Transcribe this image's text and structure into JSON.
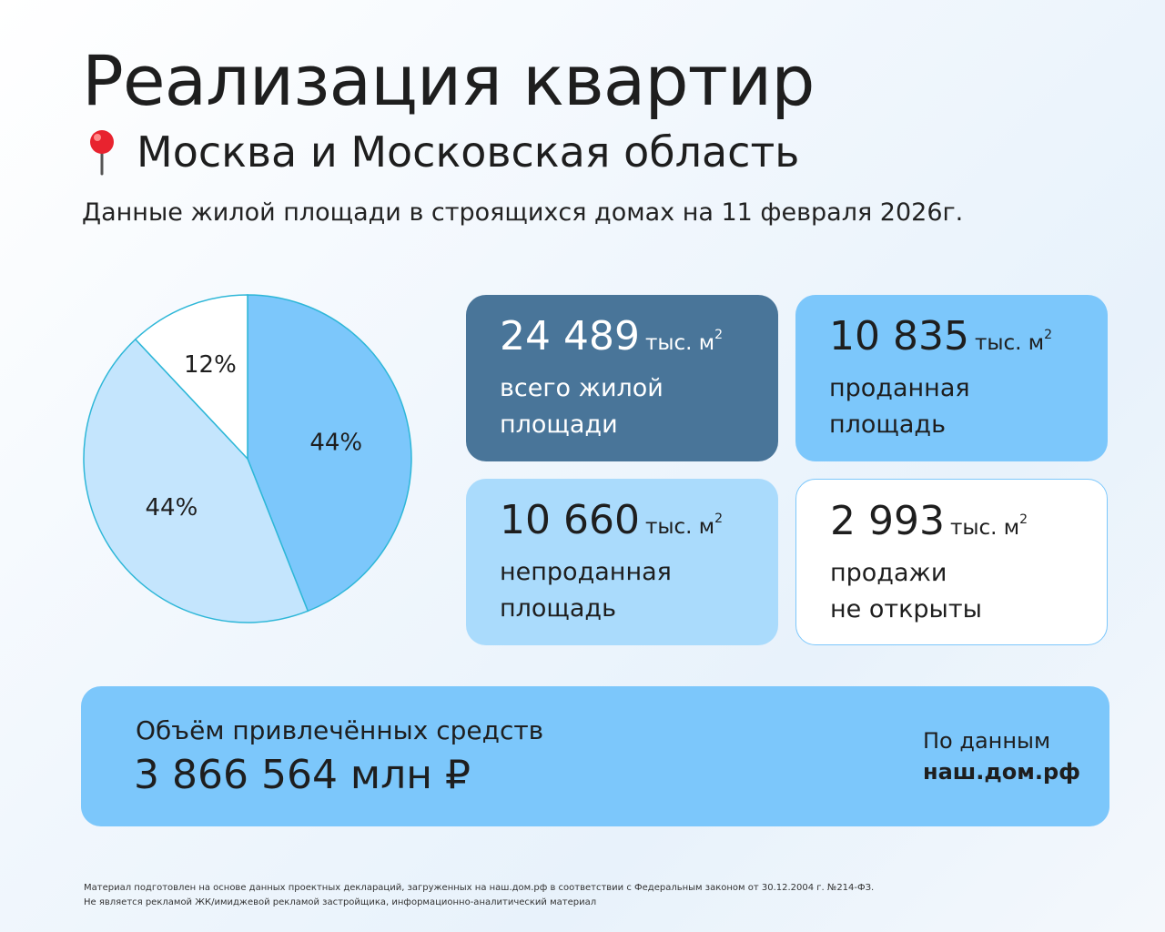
{
  "title": "Реализация квартир",
  "region": "Москва и Московская область",
  "region_icon": "pin-icon",
  "caption": "Данные жилой площади в строящихся домах на 11 февраля 2026г.",
  "chart_data": {
    "type": "pie",
    "slices": [
      {
        "label": "44%",
        "value": 44,
        "color": "#7cc7fb",
        "matches": "проданная площадь"
      },
      {
        "label": "44%",
        "value": 44,
        "color": "#c4e5fd",
        "matches": "непроданная площадь"
      },
      {
        "label": "12%",
        "value": 12,
        "color": "#ffffff",
        "matches": "продажи не открыты"
      }
    ],
    "stroke_color": "#2eb7d8"
  },
  "cards": {
    "total": {
      "number": "24 489",
      "unit": "тыс. м",
      "sup": "2",
      "desc": "всего жилой площади"
    },
    "sold": {
      "number": "10 835",
      "unit": "тыс. м",
      "sup": "2",
      "desc": "проданная площадь"
    },
    "unsold": {
      "number": "10 660",
      "unit": "тыс. м",
      "sup": "2",
      "desc": "непроданная площадь"
    },
    "closed": {
      "number": "2 993",
      "unit": "тыс. м",
      "sup": "2",
      "desc_line1": "продажи",
      "desc_line2": "не открыты"
    }
  },
  "funds": {
    "label": "Объём привлечённых средств",
    "value": "3 866 564 млн ₽",
    "source_label": "По данным",
    "source_value": "наш.дом.рф"
  },
  "footnote": {
    "line1": "Материал подготовлен на основе данных проектных деклараций, загруженных на наш.дом.рф в соответствии с Федеральным законом от 30.12.2004 г. №214-ФЗ.",
    "line2": "Не является рекламой ЖК/имиджевой рекламой застройщика, информационно-аналитический материал"
  }
}
